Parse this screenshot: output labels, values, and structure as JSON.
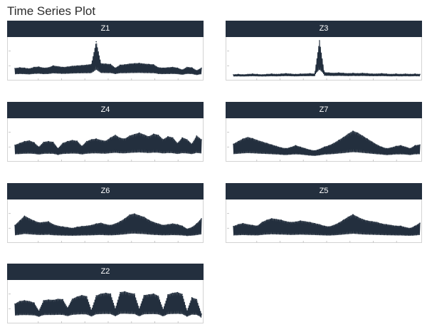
{
  "page": {
    "title": "Time Series Plot"
  },
  "colors": {
    "series": "#232f3e",
    "strip": "#232f3e",
    "strip_text": "#ffffff",
    "axis": "#c8c8c8"
  },
  "chart_data": [
    {
      "type": "line",
      "panel": "Z1",
      "ylim": [
        0,
        10
      ],
      "series": [
        {
          "values": [
            2.3,
            2.5,
            2.4,
            2.2,
            2.6,
            2.7,
            2.4,
            2.5,
            3.0,
            2.8,
            2.6,
            2.7,
            2.9,
            3.0,
            3.1,
            3.2,
            3.4,
            9.5,
            3.6,
            3.5,
            3.4,
            2.4,
            3.2,
            3.3,
            3.5,
            3.6,
            3.7,
            3.5,
            3.4,
            3.3,
            2.5,
            2.4,
            2.5,
            2.6,
            2.4,
            1.9,
            2.6,
            2.5,
            1.7,
            2.4
          ]
        }
      ]
    },
    {
      "type": "line",
      "panel": "Z3",
      "ylim": [
        0,
        10
      ],
      "series": [
        {
          "values": [
            0.6,
            0.7,
            0.6,
            0.7,
            0.8,
            0.7,
            0.6,
            0.7,
            0.8,
            0.7,
            0.8,
            0.9,
            0.8,
            0.7,
            0.8,
            0.8,
            0.9,
            0.8,
            9.8,
            1.2,
            1.1,
            1.0,
            1.1,
            1.0,
            0.9,
            1.0,
            0.9,
            1.0,
            0.9,
            0.8,
            0.8,
            0.9,
            0.8,
            0.7,
            0.8,
            0.7,
            0.8,
            0.7,
            0.8,
            0.7
          ]
        }
      ]
    },
    {
      "type": "line",
      "panel": "Z4",
      "ylim": [
        0,
        10
      ],
      "series": [
        {
          "values": [
            3.5,
            4.0,
            4.5,
            4.7,
            4.2,
            3.0,
            4.3,
            4.5,
            4.3,
            2.6,
            4.0,
            4.5,
            4.8,
            4.6,
            3.2,
            4.5,
            5.0,
            5.2,
            4.8,
            4.6,
            5.5,
            6.2,
            5.4,
            5.2,
            6.0,
            6.4,
            6.8,
            6.3,
            5.8,
            6.5,
            6.2,
            5.0,
            5.8,
            5.5,
            4.0,
            5.5,
            5.0,
            3.8,
            6.0,
            5.0
          ]
        }
      ]
    },
    {
      "type": "line",
      "panel": "Z7",
      "ylim": [
        0,
        10
      ],
      "series": [
        {
          "values": [
            3.8,
            4.5,
            5.2,
            5.6,
            5.3,
            4.8,
            4.4,
            4.0,
            3.6,
            3.2,
            2.8,
            2.6,
            2.9,
            3.4,
            3.0,
            2.6,
            2.2,
            2.0,
            2.4,
            3.0,
            3.4,
            4.0,
            4.8,
            5.6,
            6.5,
            7.3,
            6.8,
            6.0,
            5.2,
            4.4,
            3.6,
            3.0,
            2.6,
            2.8,
            3.2,
            3.4,
            3.0,
            2.6,
            3.4,
            3.6
          ]
        }
      ]
    },
    {
      "type": "line",
      "panel": "Z6",
      "ylim": [
        0,
        10
      ],
      "series": [
        {
          "values": [
            3.8,
            5.0,
            6.3,
            5.6,
            5.0,
            4.5,
            4.6,
            4.8,
            4.0,
            3.6,
            3.4,
            3.2,
            3.0,
            3.3,
            3.5,
            3.6,
            3.8,
            4.2,
            4.4,
            4.0,
            3.8,
            4.2,
            4.8,
            5.6,
            6.6,
            6.9,
            6.4,
            6.0,
            5.2,
            4.6,
            4.2,
            3.8,
            4.0,
            4.2,
            4.0,
            3.6,
            2.8,
            3.2,
            4.2,
            5.6
          ]
        }
      ]
    },
    {
      "type": "line",
      "panel": "Z5",
      "ylim": [
        0,
        10
      ],
      "series": [
        {
          "values": [
            3.5,
            4.0,
            4.3,
            4.0,
            3.8,
            3.6,
            4.6,
            5.2,
            5.6,
            5.4,
            5.2,
            4.8,
            4.6,
            4.7,
            5.0,
            4.8,
            4.6,
            4.3,
            4.0,
            3.6,
            3.4,
            3.8,
            4.4,
            5.2,
            6.0,
            6.7,
            6.0,
            5.4,
            5.0,
            4.8,
            4.6,
            4.2,
            4.0,
            3.8,
            3.6,
            3.6,
            3.2,
            3.0,
            3.6,
            4.4
          ]
        }
      ]
    },
    {
      "type": "line",
      "panel": "Z2",
      "ylim": [
        0,
        10
      ],
      "series": [
        {
          "values": [
            4.3,
            5.0,
            5.2,
            5.0,
            4.6,
            2.4,
            5.2,
            5.4,
            5.3,
            5.6,
            5.5,
            3.2,
            5.6,
            6.2,
            6.6,
            6.3,
            2.6,
            6.5,
            7.0,
            7.2,
            7.0,
            3.0,
            7.4,
            7.6,
            7.2,
            7.0,
            3.0,
            6.6,
            6.8,
            7.0,
            6.4,
            2.8,
            6.8,
            7.2,
            7.4,
            6.9,
            2.4,
            6.0,
            5.5,
            1.6
          ]
        }
      ]
    }
  ]
}
